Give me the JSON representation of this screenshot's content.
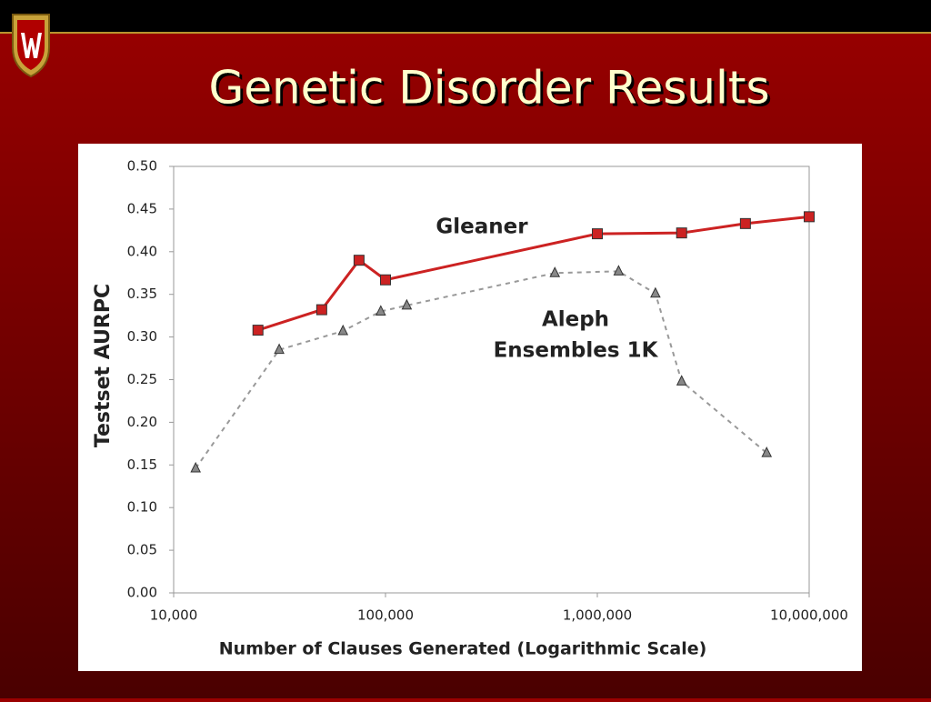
{
  "slide": {
    "title": "Genetic Disorder Results"
  },
  "chart_data": {
    "type": "line",
    "xlabel": "Number of Clauses Generated (Logarithmic Scale)",
    "ylabel": "Testset AURPC",
    "xscale": "log",
    "xlim": [
      10000,
      10000000
    ],
    "xticks": [
      {
        "value": 10000,
        "label": "10,000"
      },
      {
        "value": 100000,
        "label": "100,000"
      },
      {
        "value": 1000000,
        "label": "1,000,000"
      },
      {
        "value": 10000000,
        "label": "10,000,000"
      }
    ],
    "ylim": [
      0,
      0.5
    ],
    "yticks": [
      {
        "value": 0,
        "label": "0.00"
      },
      {
        "value": 0.05,
        "label": "0.05"
      },
      {
        "value": 0.1,
        "label": "0.10"
      },
      {
        "value": 0.15,
        "label": "0.15"
      },
      {
        "value": 0.2,
        "label": "0.20"
      },
      {
        "value": 0.25,
        "label": "0.25"
      },
      {
        "value": 0.3,
        "label": "0.30"
      },
      {
        "value": 0.35,
        "label": "0.35"
      },
      {
        "value": 0.4,
        "label": "0.40"
      },
      {
        "value": 0.45,
        "label": "0.45"
      },
      {
        "value": 0.5,
        "label": "0.50"
      }
    ],
    "series": [
      {
        "name": "Gleaner",
        "color": "#cc2222",
        "marker": "square",
        "linestyle": "solid",
        "x": [
          25000,
          50000,
          75000,
          100000,
          1000000,
          2500000,
          5000000,
          10000000
        ],
        "values": [
          0.308,
          0.332,
          0.39,
          0.367,
          0.421,
          0.422,
          0.433,
          0.441
        ]
      },
      {
        "name": "Aleph Ensembles 1K",
        "color": "#888888",
        "marker": "triangle",
        "linestyle": "dashed",
        "x": [
          12700,
          31500,
          63000,
          95000,
          126000,
          630000,
          1260000,
          1880000,
          2500000,
          6300000
        ],
        "values": [
          0.146,
          0.285,
          0.307,
          0.33,
          0.337,
          0.375,
          0.377,
          0.351,
          0.248,
          0.164
        ]
      }
    ],
    "annotations": [
      "Gleaner",
      "Aleph",
      "Ensembles 1K"
    ]
  }
}
